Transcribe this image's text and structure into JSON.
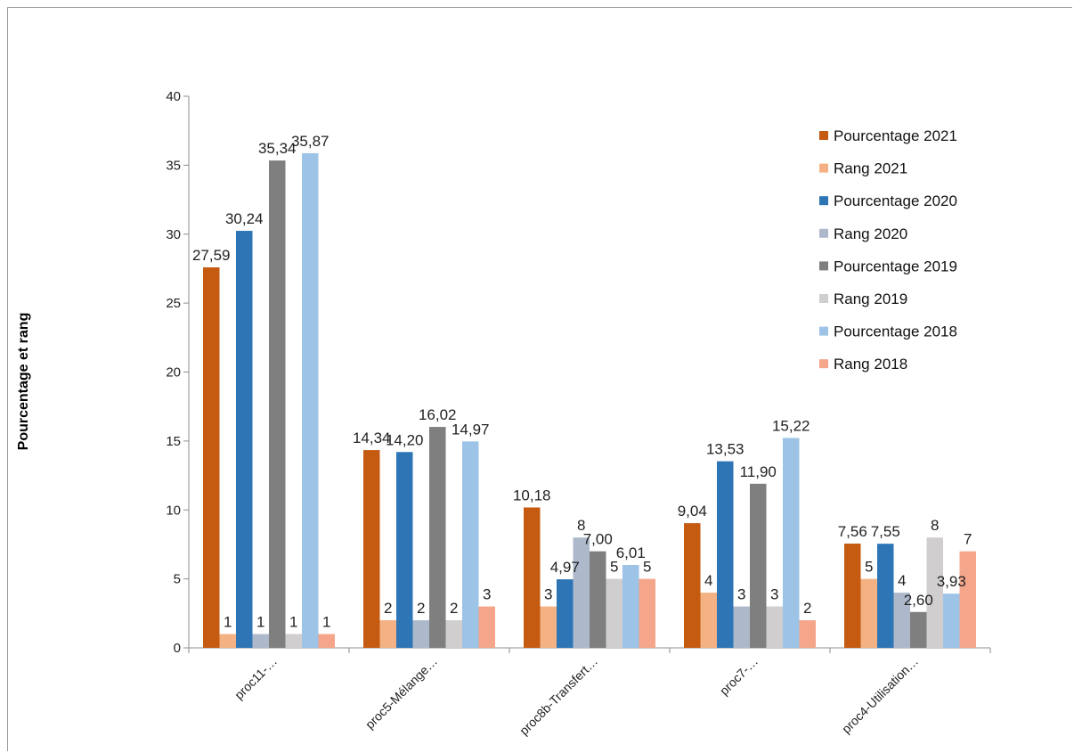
{
  "chart_data": {
    "type": "bar",
    "title": "",
    "xlabel": "",
    "ylabel": "Pourcentage et rang",
    "ylim": [
      0,
      40
    ],
    "yticks": [
      0,
      5,
      10,
      15,
      20,
      25,
      30,
      35,
      40
    ],
    "grid": false,
    "legend_position": "right",
    "categories": [
      "proc11-…",
      "proc5-Mélange…",
      "proc8b-Transfert…",
      "proc7-…",
      "proc4-Utilisation…"
    ],
    "series": [
      {
        "name": "Pourcentage 2021",
        "color": "#c55a11",
        "values": [
          27.59,
          14.34,
          10.18,
          9.04,
          7.56
        ],
        "labels": [
          "27,59",
          "14,34",
          "10,18",
          "9,04",
          "7,56"
        ]
      },
      {
        "name": "Rang 2021",
        "color": "#f4b183",
        "values": [
          1,
          2,
          3,
          4,
          5
        ],
        "labels": [
          "1",
          "2",
          "3",
          "4",
          "5"
        ]
      },
      {
        "name": "Pourcentage 2020",
        "color": "#2e75b6",
        "values": [
          30.24,
          14.2,
          4.97,
          13.53,
          7.55
        ],
        "labels": [
          "30,24",
          "14,20",
          "4,97",
          "13,53",
          "7,55"
        ]
      },
      {
        "name": "Rang 2020",
        "color": "#adb9ca",
        "values": [
          1,
          2,
          8,
          3,
          4
        ],
        "labels": [
          "1",
          "2",
          "8",
          "3",
          "4"
        ]
      },
      {
        "name": "Pourcentage 2019",
        "color": "#7f7f7f",
        "values": [
          35.34,
          16.02,
          7.0,
          11.9,
          2.6
        ],
        "labels": [
          "35,34",
          "16,02",
          "7,00",
          "11,90",
          "2,60"
        ]
      },
      {
        "name": "Rang 2019",
        "color": "#d0cece",
        "values": [
          1,
          2,
          5,
          3,
          8
        ],
        "labels": [
          "1",
          "2",
          "5",
          "3",
          "8"
        ]
      },
      {
        "name": "Pourcentage 2018",
        "color": "#9dc3e6",
        "values": [
          35.87,
          14.97,
          6.01,
          15.22,
          3.93
        ],
        "labels": [
          "35,87",
          "14,97",
          "6,01",
          "15,22",
          "3,93"
        ]
      },
      {
        "name": "Rang 2018",
        "color": "#f4a58a",
        "values": [
          1,
          3,
          5,
          2,
          7
        ],
        "labels": [
          "1",
          "3",
          "5",
          "2",
          "7"
        ]
      }
    ]
  }
}
